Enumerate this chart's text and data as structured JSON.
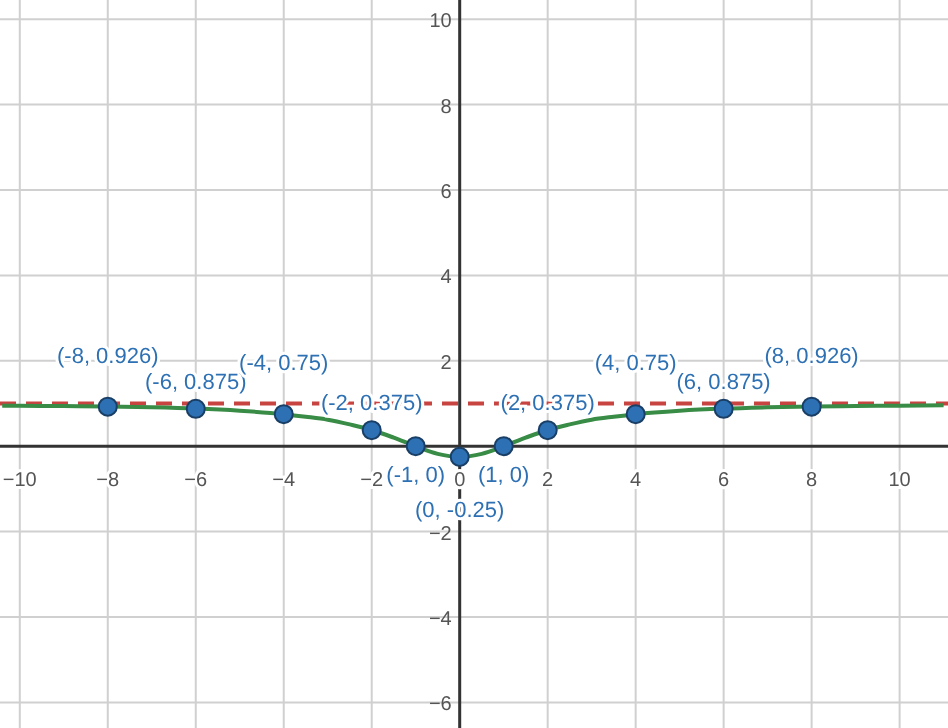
{
  "chart_data": {
    "type": "scatter",
    "xlim": [
      -10.45,
      11.1
    ],
    "ylim": [
      -6.6,
      10.45
    ],
    "xticks": [
      -10,
      -8,
      -6,
      -4,
      -2,
      0,
      2,
      4,
      6,
      8,
      10
    ],
    "yticks": [
      -6,
      -4,
      -2,
      2,
      4,
      6,
      8,
      10
    ],
    "grid": true,
    "series": [
      {
        "type": "line",
        "color": "#388c46",
        "marker": "none",
        "line_style": "solid",
        "x": [
          -10.4,
          -10,
          -9,
          -8,
          -7,
          -6,
          -5,
          -4,
          -3.5,
          -3,
          -2.5,
          -2,
          -1.5,
          -1,
          -0.5,
          0,
          0.5,
          1,
          1.5,
          2,
          2.5,
          3,
          3.5,
          4,
          5,
          6,
          7,
          8,
          9,
          10,
          11
        ],
        "values": [
          0.95,
          0.95,
          0.94,
          0.93,
          0.91,
          0.88,
          0.83,
          0.75,
          0.69,
          0.62,
          0.51,
          0.38,
          0.2,
          0,
          -0.18,
          -0.25,
          -0.18,
          0,
          0.2,
          0.38,
          0.51,
          0.62,
          0.69,
          0.75,
          0.83,
          0.88,
          0.91,
          0.93,
          0.94,
          0.95,
          0.96
        ]
      },
      {
        "color": "#2d70b3",
        "marker": "circle",
        "x": [
          -8,
          -6,
          -4,
          -2,
          -1,
          0,
          1,
          2,
          4,
          6,
          8
        ],
        "values": [
          0.926,
          0.875,
          0.75,
          0.375,
          0,
          -0.25,
          0,
          0.375,
          0.75,
          0.875,
          0.926
        ]
      }
    ],
    "ref_lines": [
      {
        "axis": "y",
        "value": 1,
        "color": "#c74440",
        "line_style": "dashed"
      }
    ],
    "annotations": [
      {
        "text": "(-8, 0.926)",
        "x": -8,
        "y": 0.926
      },
      {
        "text": "(-6, 0.875)",
        "x": -6,
        "y": 0.875
      },
      {
        "text": "(-4, 0.75)",
        "x": -4,
        "y": 0.75
      },
      {
        "text": "(-2, 0.375)",
        "x": -2,
        "y": 0.375
      },
      {
        "text": "(-1, 0)",
        "x": -1,
        "y": 0
      },
      {
        "text": "(0, -0.25)",
        "x": 0,
        "y": -0.25
      },
      {
        "text": "(1, 0)",
        "x": 1,
        "y": 0
      },
      {
        "text": "(2, 0.375)",
        "x": 2,
        "y": 0.375
      },
      {
        "text": "(4, 0.75)",
        "x": 4,
        "y": 0.75
      },
      {
        "text": "(6, 0.875)",
        "x": 6,
        "y": 0.875
      },
      {
        "text": "(8, 0.926)",
        "x": 8,
        "y": 0.926
      }
    ]
  }
}
